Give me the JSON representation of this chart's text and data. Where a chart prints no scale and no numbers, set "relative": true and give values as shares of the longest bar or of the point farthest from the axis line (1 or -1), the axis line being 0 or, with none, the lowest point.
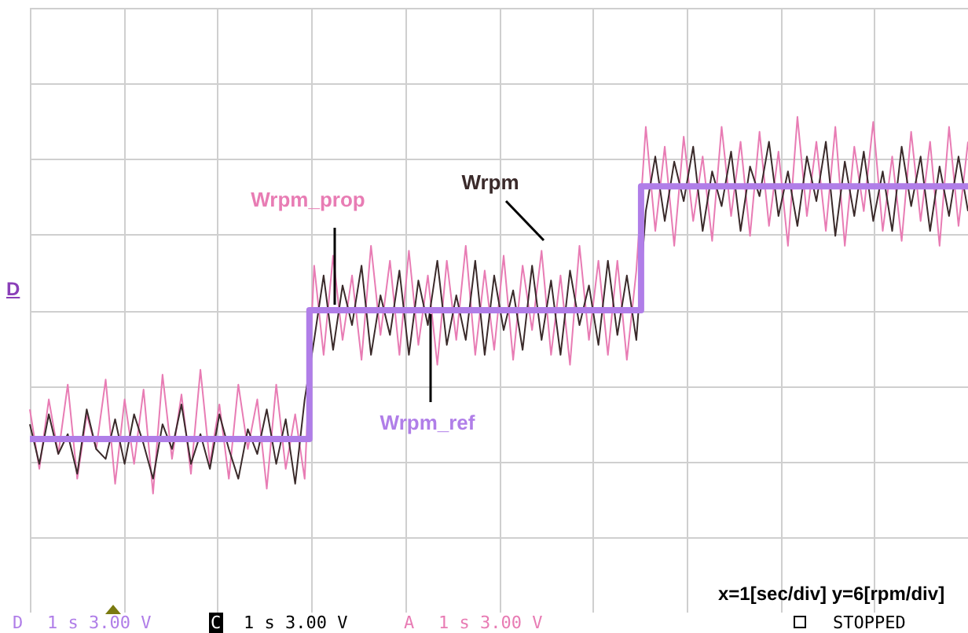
{
  "chart_data": {
    "type": "line",
    "relative": true,
    "grid": true,
    "marker": "none",
    "line_style": "solid",
    "categories": [
      null,
      null,
      null,
      null,
      null,
      null,
      null,
      null,
      null,
      null,
      null,
      null,
      null,
      null,
      null,
      null,
      null,
      null,
      null,
      null,
      null,
      null,
      null,
      null,
      null,
      null,
      null,
      null,
      null,
      null,
      null,
      null,
      null,
      null,
      null,
      null,
      null,
      null,
      null,
      null,
      null,
      null,
      null,
      null,
      null,
      null,
      null,
      null,
      null,
      null,
      null,
      null,
      null,
      null,
      null,
      null,
      null,
      null,
      null,
      null,
      null,
      null,
      null,
      null,
      null,
      null,
      null,
      null,
      null,
      null,
      null,
      null,
      null,
      null,
      null,
      null,
      null,
      null,
      null,
      null,
      null,
      null,
      null,
      null,
      null,
      null,
      null,
      null,
      null,
      null,
      null,
      null,
      null,
      null,
      null,
      null,
      null,
      null,
      null,
      null
    ],
    "series": [
      {
        "name": "Wrpm_ref",
        "type": "step",
        "color": "#b07ee8",
        "values": [
          0.35,
          0.35,
          0.35,
          0.35,
          0.35,
          0.35,
          0.35,
          0.35,
          0.35,
          0.35,
          0.35,
          0.35,
          0.35,
          0.35,
          0.35,
          0.35,
          0.35,
          0.35,
          0.35,
          0.35,
          0.35,
          0.35,
          0.35,
          0.35,
          0.35,
          0.35,
          0.35,
          0.35,
          0.35,
          0.35,
          0.61,
          0.61,
          0.61,
          0.61,
          0.61,
          0.61,
          0.61,
          0.61,
          0.61,
          0.61,
          0.61,
          0.61,
          0.61,
          0.61,
          0.61,
          0.61,
          0.61,
          0.61,
          0.61,
          0.61,
          0.61,
          0.61,
          0.61,
          0.61,
          0.61,
          0.61,
          0.61,
          0.61,
          0.61,
          0.61,
          0.61,
          0.61,
          0.61,
          0.61,
          0.61,
          0.86,
          0.86,
          0.86,
          0.86,
          0.86,
          0.86,
          0.86,
          0.86,
          0.86,
          0.86,
          0.86,
          0.86,
          0.86,
          0.86,
          0.86,
          0.86,
          0.86,
          0.86,
          0.86,
          0.86,
          0.86,
          0.86,
          0.86,
          0.86,
          0.86,
          0.86,
          0.86,
          0.86,
          0.86,
          0.86,
          0.86,
          0.86,
          0.86,
          0.86,
          0.86
        ]
      },
      {
        "name": "Wrpm",
        "color": "#3a2a2a",
        "values": [
          0.38,
          0.3,
          0.4,
          0.32,
          0.36,
          0.28,
          0.41,
          0.33,
          0.31,
          0.39,
          0.3,
          0.4,
          0.34,
          0.27,
          0.38,
          0.33,
          0.42,
          0.3,
          0.36,
          0.29,
          0.4,
          0.33,
          0.27,
          0.37,
          0.32,
          0.41,
          0.3,
          0.39,
          0.26,
          0.43,
          0.55,
          0.68,
          0.53,
          0.66,
          0.58,
          0.7,
          0.52,
          0.64,
          0.56,
          0.69,
          0.52,
          0.67,
          0.58,
          0.71,
          0.54,
          0.64,
          0.55,
          0.71,
          0.52,
          0.68,
          0.57,
          0.65,
          0.53,
          0.7,
          0.55,
          0.67,
          0.52,
          0.69,
          0.58,
          0.66,
          0.54,
          0.71,
          0.56,
          0.68,
          0.55,
          0.81,
          0.92,
          0.79,
          0.91,
          0.83,
          0.94,
          0.77,
          0.89,
          0.82,
          0.93,
          0.77,
          0.9,
          0.84,
          0.95,
          0.8,
          0.89,
          0.78,
          0.92,
          0.83,
          0.95,
          0.76,
          0.91,
          0.8,
          0.93,
          0.79,
          0.89,
          0.77,
          0.94,
          0.82,
          0.92,
          0.77,
          0.9,
          0.8,
          0.92,
          0.81
        ]
      },
      {
        "name": "Wrpm_prop",
        "color": "#e87cb4",
        "values": [
          0.41,
          0.29,
          0.43,
          0.32,
          0.46,
          0.27,
          0.4,
          0.33,
          0.47,
          0.26,
          0.43,
          0.3,
          0.45,
          0.24,
          0.48,
          0.31,
          0.44,
          0.28,
          0.49,
          0.3,
          0.42,
          0.27,
          0.46,
          0.33,
          0.43,
          0.25,
          0.46,
          0.29,
          0.4,
          0.27,
          0.7,
          0.52,
          0.72,
          0.55,
          0.68,
          0.51,
          0.74,
          0.56,
          0.71,
          0.52,
          0.73,
          0.54,
          0.68,
          0.5,
          0.71,
          0.55,
          0.74,
          0.52,
          0.69,
          0.53,
          0.72,
          0.51,
          0.7,
          0.57,
          0.73,
          0.52,
          0.68,
          0.5,
          0.74,
          0.55,
          0.71,
          0.52,
          0.71,
          0.51,
          0.69,
          0.98,
          0.77,
          0.94,
          0.74,
          0.96,
          0.79,
          0.92,
          0.75,
          0.98,
          0.8,
          0.95,
          0.76,
          0.97,
          0.78,
          0.93,
          0.74,
          1.0,
          0.8,
          0.95,
          0.77,
          0.98,
          0.74,
          0.94,
          0.81,
          0.99,
          0.77,
          0.92,
          0.75,
          0.97,
          0.79,
          0.95,
          0.74,
          0.98,
          0.78,
          0.95
        ]
      }
    ],
    "annotations": [
      "x=1[sec/div] y=6[rpm/div]",
      "D",
      "D",
      "1 s 3.00 V",
      "C",
      "1 s 3.00 V",
      "A",
      "1 s 3.00 V",
      "STOPPED"
    ]
  }
}
